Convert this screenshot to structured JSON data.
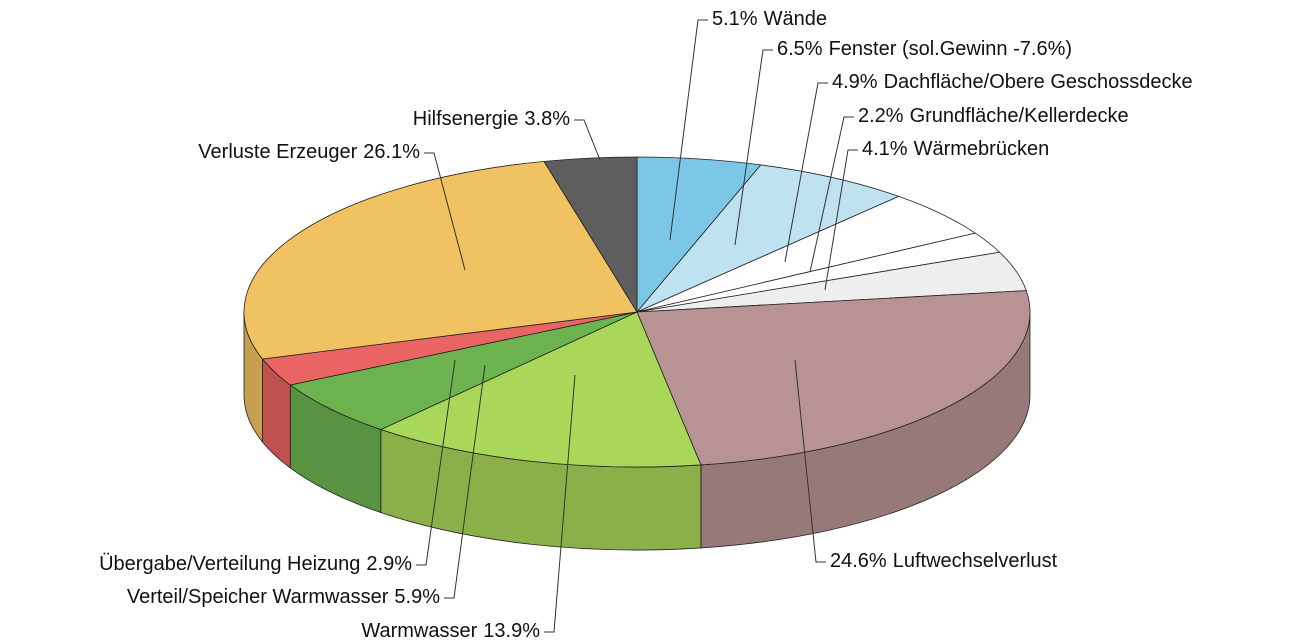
{
  "chart_data": {
    "type": "pie3d",
    "categories": [
      "Wände",
      "Fenster (sol.Gewinn -7.6%)",
      "Dachfläche/Obere Geschossdecke",
      "Grundfläche/Kellerdecke",
      "Wärmebrücken",
      "Luftwechselverlust",
      "Warmwasser",
      "Verteil/Speicher Warmwasser",
      "Übergabe/Verteilung Heizung",
      "Verluste Erzeuger",
      "Hilfsenergie"
    ],
    "values": [
      5.1,
      6.5,
      4.9,
      2.2,
      4.1,
      24.6,
      13.9,
      5.9,
      2.9,
      26.1,
      3.8
    ],
    "value_labels": [
      "5.1%",
      "6.5%",
      "4.9%",
      "2.2%",
      "4.1%",
      "24.6%",
      "13.9%",
      "5.9%",
      "2.9%",
      "26.1%",
      "3.8%"
    ],
    "colors": [
      "#7cc7e6",
      "#bfe2f0",
      "#ffffff",
      "#ffffff",
      "#eeeeee",
      "#b99394",
      "#a9d75a",
      "#6cb24e",
      "#e96463",
      "#f1c262",
      "#5e5e5e"
    ]
  }
}
